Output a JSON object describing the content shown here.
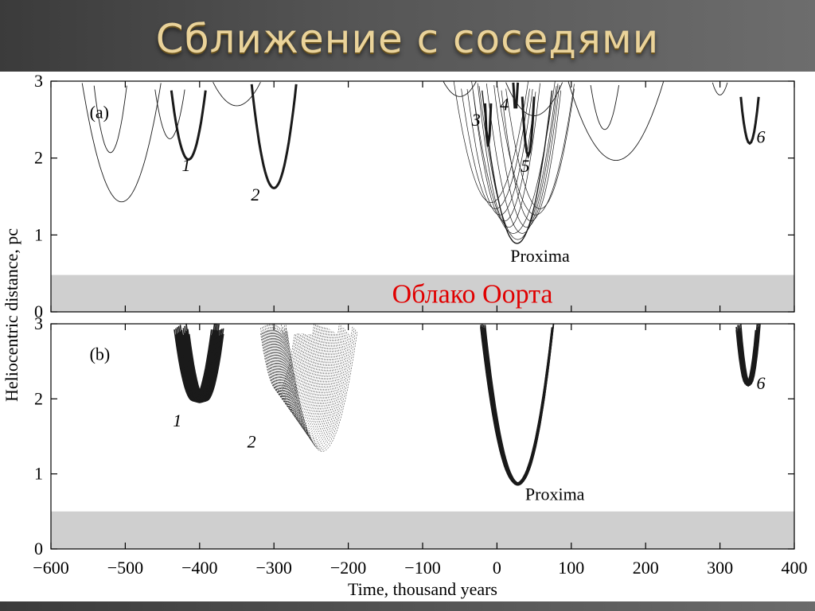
{
  "slide_title": "Сближение с соседями",
  "chart_data": [
    {
      "type": "line",
      "panel_label": "(a)",
      "xlim": [
        -600,
        400
      ],
      "ylim": [
        0,
        3
      ],
      "xticks": [
        -600,
        -500,
        -400,
        -300,
        -200,
        -100,
        0,
        100,
        200,
        300,
        400
      ],
      "yticks": [
        0,
        1,
        2,
        3
      ],
      "band": {
        "y0": 0,
        "y1": 0.48,
        "label": "Облако Оорта",
        "label_color": "#e00000"
      },
      "series": [
        {
          "name": "1",
          "label_pos": [
            -418,
            1.83
          ],
          "min_t": -415,
          "min_d": 1.98,
          "k": 0.0017,
          "bold": true
        },
        {
          "name": "2",
          "label_pos": [
            -325,
            1.45
          ],
          "min_t": -300,
          "min_d": 1.61,
          "k": 0.0015,
          "bold": true
        },
        {
          "name": "3",
          "label_pos": [
            -28,
            2.42
          ],
          "min_t": -12,
          "min_d": 2.15,
          "k": 0.035,
          "bold": true
        },
        {
          "name": "4",
          "label_pos": [
            10,
            2.62
          ],
          "min_t": 25,
          "min_d": 2.62,
          "k": 0.04,
          "bold": true
        },
        {
          "name": "5",
          "label_pos": [
            38,
            1.82
          ],
          "min_t": 42,
          "min_d": 2.03,
          "k": 0.012,
          "bold": true
        },
        {
          "name": "6",
          "label_pos": [
            355,
            2.2
          ],
          "min_t": 340,
          "min_d": 2.19,
          "k": 0.0042,
          "bold": true
        },
        {
          "name": "Proxima",
          "label_pos": [
            18,
            0.65
          ],
          "min_t": 27,
          "min_d": 0.89,
          "k": 0.0009,
          "bold": false
        }
      ],
      "thin_tracks": [
        {
          "min_t": -505,
          "min_d": 1.43,
          "k": 0.00055
        },
        {
          "min_t": -520,
          "min_d": 2.07,
          "k": 0.0018
        },
        {
          "min_t": -440,
          "min_d": 2.25,
          "k": 0.0016
        },
        {
          "min_t": -350,
          "min_d": 2.68,
          "k": 0.0003
        },
        {
          "min_t": -50,
          "min_d": 2.8,
          "k": 0.0004
        },
        {
          "min_t": 50,
          "min_d": 2.55,
          "k": 0.0003
        },
        {
          "min_t": 145,
          "min_d": 2.37,
          "k": 0.0016
        },
        {
          "min_t": 160,
          "min_d": 1.97,
          "k": 0.00025
        },
        {
          "min_t": 300,
          "min_d": 2.82,
          "k": 0.0016
        }
      ]
    },
    {
      "type": "line",
      "panel_label": "(b)",
      "xlim": [
        -600,
        400
      ],
      "ylim": [
        0,
        3
      ],
      "xticks": [
        -600,
        -500,
        -400,
        -300,
        -200,
        -100,
        0,
        100,
        200,
        300,
        400
      ],
      "yticks": [
        0,
        1,
        2,
        3
      ],
      "band": {
        "y0": 0,
        "y1": 0.5
      },
      "series": [
        {
          "name": "1",
          "label_pos": [
            -430,
            1.63
          ],
          "min_t": -400,
          "min_d": 1.95,
          "k": 0.0016,
          "spread": 18
        },
        {
          "name": "2",
          "label_pos": [
            -330,
            1.35
          ],
          "min_t": -265,
          "min_d": 1.3,
          "k": 0.0012,
          "spread": 60
        },
        {
          "name": "6",
          "label_pos": [
            355,
            2.13
          ],
          "min_t": 338,
          "min_d": 2.17,
          "k": 0.0045,
          "spread": 6
        },
        {
          "name": "Proxima",
          "label_pos": [
            38,
            0.65
          ],
          "min_t": 28,
          "min_d": 0.85,
          "k": 0.00095,
          "spread": 4
        }
      ]
    }
  ],
  "xlabel": "Time, thousand years",
  "ylabel": "Heliocentric distance, pc"
}
